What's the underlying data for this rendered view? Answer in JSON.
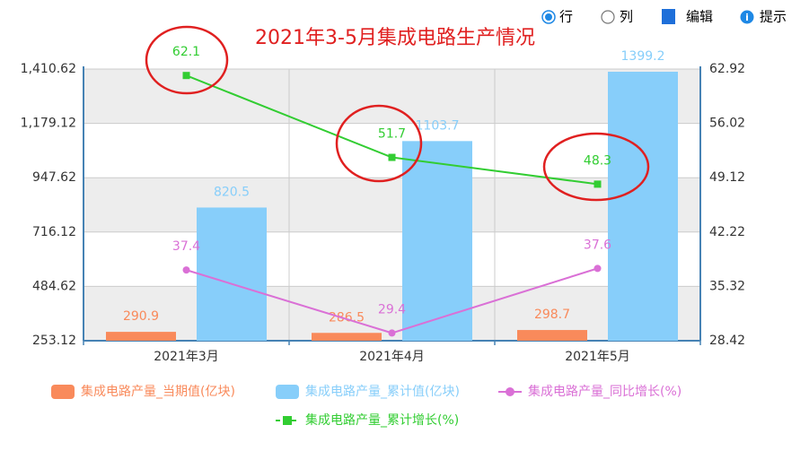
{
  "toolbar": {
    "options": [
      "行",
      "列",
      "编辑",
      "提示"
    ]
  },
  "chart_data": {
    "type": "combo",
    "title": "2021年3-5月集成电路生产情况",
    "categories": [
      "2021年3月",
      "2021年4月",
      "2021年5月"
    ],
    "series": [
      {
        "name": "集成电路产量_当期值(亿块)",
        "type": "bar",
        "color": "#f98a5b",
        "values": [
          290.9,
          286.5,
          298.7
        ]
      },
      {
        "name": "集成电路产量_累计值(亿块)",
        "type": "bar",
        "color": "#87cefa",
        "values": [
          820.5,
          1103.7,
          1399.2
        ]
      },
      {
        "name": "集成电路产量_同比增长(%)",
        "type": "line",
        "axis": "y2",
        "color": "#da70d6",
        "values": [
          37.4,
          29.4,
          37.6
        ]
      },
      {
        "name": "集成电路产量_累计增长(%)",
        "type": "line",
        "axis": "y2",
        "color": "#32cd32",
        "values": [
          62.1,
          51.7,
          48.3
        ]
      }
    ],
    "ylim": [
      253.12,
      1410.62
    ],
    "yticks": [
      253.12,
      484.62,
      716.12,
      947.62,
      {
        "value": 1179.12,
        "label": "1,179.12"
      },
      {
        "value": 1410.62,
        "label": "1,410.62"
      }
    ],
    "y2lim": [
      28.42,
      62.92
    ],
    "y2ticks": [
      28.42,
      35.32,
      42.22,
      49.12,
      56.02,
      62.92
    ],
    "grid": true
  }
}
